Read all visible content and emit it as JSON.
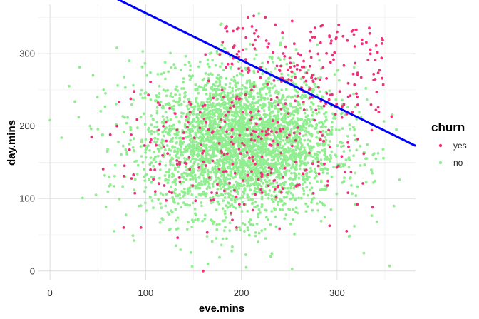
{
  "chart_data": {
    "type": "scatter",
    "title": "",
    "xlabel": "eve.mins",
    "ylabel": "day.mins",
    "xlim": [
      -12,
      382
    ],
    "ylim": [
      -12,
      368
    ],
    "x_ticks": [
      0,
      100,
      200,
      300
    ],
    "y_ticks": [
      0,
      100,
      200,
      300
    ],
    "grid": true,
    "legend": {
      "title": "churn",
      "position": "right",
      "entries": [
        {
          "label": "yes",
          "color": "#F0307A"
        },
        {
          "label": "no",
          "color": "#90EE90"
        }
      ]
    },
    "series": [
      {
        "name": "no",
        "color": "#90EE90",
        "count": 3500,
        "x_mean": 200,
        "x_sd": 50,
        "y_mean": 176,
        "y_sd": 50,
        "sample_points": [
          [
            0,
            208
          ],
          [
            30,
            212
          ],
          [
            42,
            200
          ],
          [
            43,
            196
          ],
          [
            20,
            255
          ],
          [
            56,
            250
          ],
          [
            70,
            308
          ],
          [
            83,
            290
          ],
          [
            97,
            303
          ],
          [
            58,
            245
          ],
          [
            45,
            270
          ],
          [
            60,
            165
          ],
          [
            48,
            105
          ],
          [
            67,
            55
          ],
          [
            165,
            10
          ],
          [
            205,
            5
          ],
          [
            253,
            3
          ],
          [
            318,
            62
          ],
          [
            355,
            7
          ],
          [
            338,
            122
          ],
          [
            348,
            168
          ],
          [
            362,
            195
          ],
          [
            330,
            252
          ]
        ]
      },
      {
        "name": "yes",
        "color": "#F0307A",
        "count": 480,
        "sample_points": [
          [
            213,
            352
          ],
          [
            207,
            350
          ],
          [
            225,
            350
          ],
          [
            253,
            345
          ],
          [
            320,
            333
          ],
          [
            357,
            213
          ],
          [
            337,
            88
          ],
          [
            310,
            55
          ],
          [
            195,
            60
          ],
          [
            160,
            0
          ],
          [
            77,
            60
          ],
          [
            95,
            60
          ],
          [
            63,
            188
          ],
          [
            70,
            200
          ],
          [
            113,
            232
          ],
          [
            110,
            110
          ],
          [
            238,
            205
          ],
          [
            290,
            118
          ],
          [
            300,
            330
          ]
        ]
      }
    ],
    "fit_line": {
      "color": "#0000FF",
      "intercept": 421,
      "slope": -0.65,
      "x_range": [
        -12,
        382
      ]
    }
  }
}
